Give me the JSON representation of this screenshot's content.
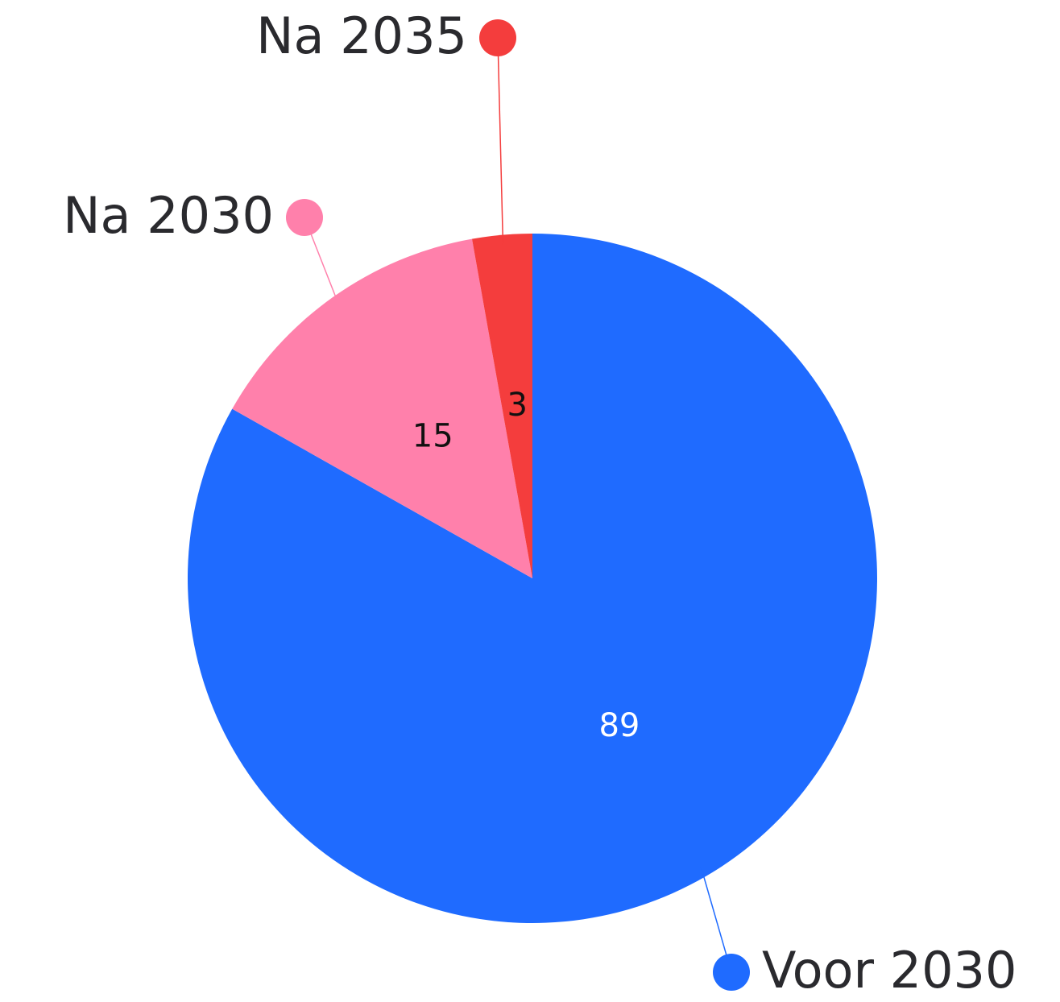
{
  "chart_data": {
    "type": "pie",
    "categories": [
      "Voor 2030",
      "Na 2030",
      "Na 2035"
    ],
    "values": [
      89,
      15,
      3
    ],
    "colors": [
      "#1f6bff",
      "#ff80ab",
      "#f43d3d"
    ]
  }
}
